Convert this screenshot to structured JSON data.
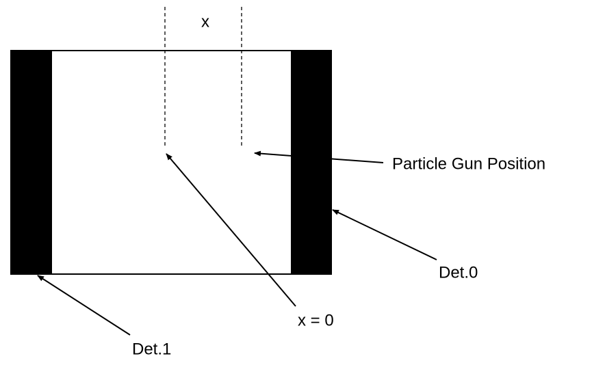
{
  "labels": {
    "gap": "x",
    "gun": "Particle Gun Position",
    "det0": "Det.0",
    "det1": "Det.1",
    "origin": "x = 0"
  }
}
